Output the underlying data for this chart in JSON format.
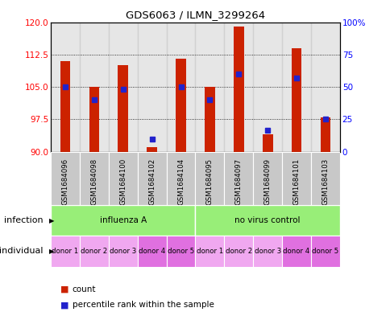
{
  "title": "GDS6063 / ILMN_3299264",
  "samples": [
    "GSM1684096",
    "GSM1684098",
    "GSM1684100",
    "GSM1684102",
    "GSM1684104",
    "GSM1684095",
    "GSM1684097",
    "GSM1684099",
    "GSM1684101",
    "GSM1684103"
  ],
  "bar_bottoms": [
    90,
    90,
    90,
    90,
    90,
    90,
    90,
    90,
    90,
    90
  ],
  "bar_tops": [
    111.0,
    105.0,
    110.0,
    91.0,
    111.5,
    105.0,
    119.0,
    94.0,
    114.0,
    98.0
  ],
  "blue_dots": [
    105.0,
    102.0,
    104.5,
    93.0,
    105.0,
    102.0,
    108.0,
    95.0,
    107.0,
    97.5
  ],
  "ylim_left": [
    90,
    120
  ],
  "ylim_right": [
    0,
    100
  ],
  "yticks_left": [
    90,
    97.5,
    105,
    112.5,
    120
  ],
  "yticks_right": [
    0,
    25,
    50,
    75,
    100
  ],
  "gridlines": [
    97.5,
    105,
    112.5
  ],
  "infection_labels": [
    "influenza A",
    "no virus control"
  ],
  "infection_color": "#98EE78",
  "individual_labels": [
    "donor 1",
    "donor 2",
    "donor 3",
    "donor 4",
    "donor 5",
    "donor 1",
    "donor 2",
    "donor 3",
    "donor 4",
    "donor 5"
  ],
  "ind_colors_light": "#F0A8F0",
  "ind_colors_dark": "#E070E0",
  "ind_dark_indices": [
    3,
    4,
    8,
    9
  ],
  "bar_color": "#CC2200",
  "dot_color": "#2222CC",
  "box_bg": "#C8C8C8"
}
